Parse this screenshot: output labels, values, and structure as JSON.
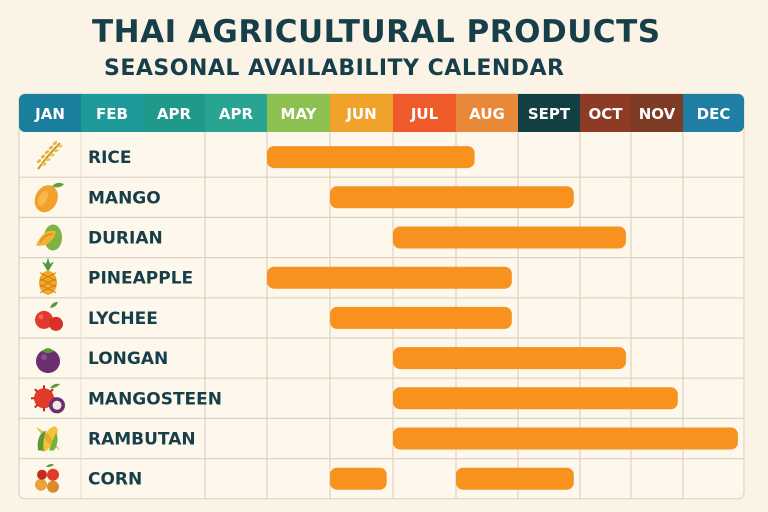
{
  "title": "THAI AGRICULTURAL PRODUCTS",
  "subtitle": "SEASONAL AVAILABILITY CALENDAR",
  "chart_data": {
    "type": "table",
    "title": "THAI AGRICULTURAL PRODUCTS",
    "subtitle": "SEASONAL AVAILABILITY CALENDAR",
    "bar_color": "#f7921e",
    "grid": true,
    "months": [
      {
        "label": "JAN",
        "color": "#1a7f9c"
      },
      {
        "label": "FEB",
        "color": "#1f9a9b"
      },
      {
        "label": "APR",
        "color": "#1f9a8a"
      },
      {
        "label": "APR",
        "color": "#27a592"
      },
      {
        "label": "MAY",
        "color": "#8cc152"
      },
      {
        "label": "JUN",
        "color": "#f0a22a"
      },
      {
        "label": "JUL",
        "color": "#ef5a2b"
      },
      {
        "label": "AUG",
        "color": "#e8893a"
      },
      {
        "label": "SEPT",
        "color": "#123f42"
      },
      {
        "label": "OCT",
        "color": "#8e3b25"
      },
      {
        "label": "NOV",
        "color": "#7d3a25"
      },
      {
        "label": "DEC",
        "color": "#1f7ea3"
      }
    ],
    "products": [
      {
        "name": "RICE",
        "icon": "rice-icon",
        "periods": [
          [
            5,
            8.3
          ]
        ]
      },
      {
        "name": "MANGO",
        "icon": "mango-icon",
        "periods": [
          [
            6,
            9.9
          ]
        ]
      },
      {
        "name": "DURIAN",
        "icon": "durian-icon",
        "periods": [
          [
            7,
            10.9
          ]
        ]
      },
      {
        "name": "PINEAPPLE",
        "icon": "pineapple-icon",
        "periods": [
          [
            5,
            8.9
          ]
        ]
      },
      {
        "name": "LYCHEE",
        "icon": "lychee-icon",
        "periods": [
          [
            6,
            8.9
          ]
        ]
      },
      {
        "name": "LONGAN",
        "icon": "longan-icon",
        "periods": [
          [
            7,
            10.9
          ]
        ]
      },
      {
        "name": "MANGOSTEEN",
        "icon": "mangosteen-icon",
        "periods": [
          [
            7,
            11.9
          ]
        ]
      },
      {
        "name": "RAMBUTAN",
        "icon": "corn-icon",
        "periods": [
          [
            7,
            12.9
          ]
        ]
      },
      {
        "name": "CORN",
        "icon": "mixed-fruit-icon",
        "periods": [
          [
            6,
            6.9
          ],
          [
            8,
            9.9
          ]
        ]
      }
    ]
  }
}
